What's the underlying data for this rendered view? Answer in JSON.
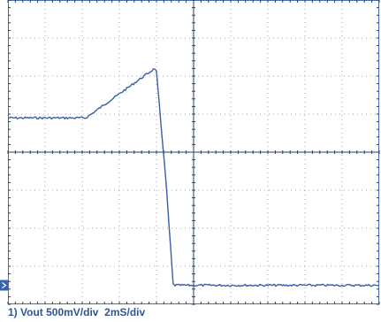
{
  "caption": "1) Vout 500mV/div  2mS/div",
  "channel_marker": "1",
  "colors": {
    "trace": "#3a5fa8",
    "frame": "#4a6fb5",
    "grid_dots": "#9aa8c8",
    "caption": "#2f5597",
    "marker_bg": "#3a63ad"
  },
  "chart_data": {
    "type": "line",
    "title": "",
    "xlabel": "",
    "ylabel": "",
    "x_units": "ms",
    "y_units": "V",
    "xlim": [
      0,
      20
    ],
    "ylim": [
      -0.25,
      3.75
    ],
    "grid": true,
    "divisions": {
      "x": 10,
      "y": 8
    },
    "scale": {
      "volts_per_div": 0.5,
      "ms_per_div": 2
    },
    "series": [
      {
        "name": "",
        "x": [
          0,
          4.2,
          7.9,
          8.0,
          8.5,
          8.9,
          9.0,
          20
        ],
        "y": [
          2.2,
          2.2,
          2.85,
          2.8,
          1.4,
          0.01,
          0.0,
          0.0
        ]
      }
    ]
  }
}
